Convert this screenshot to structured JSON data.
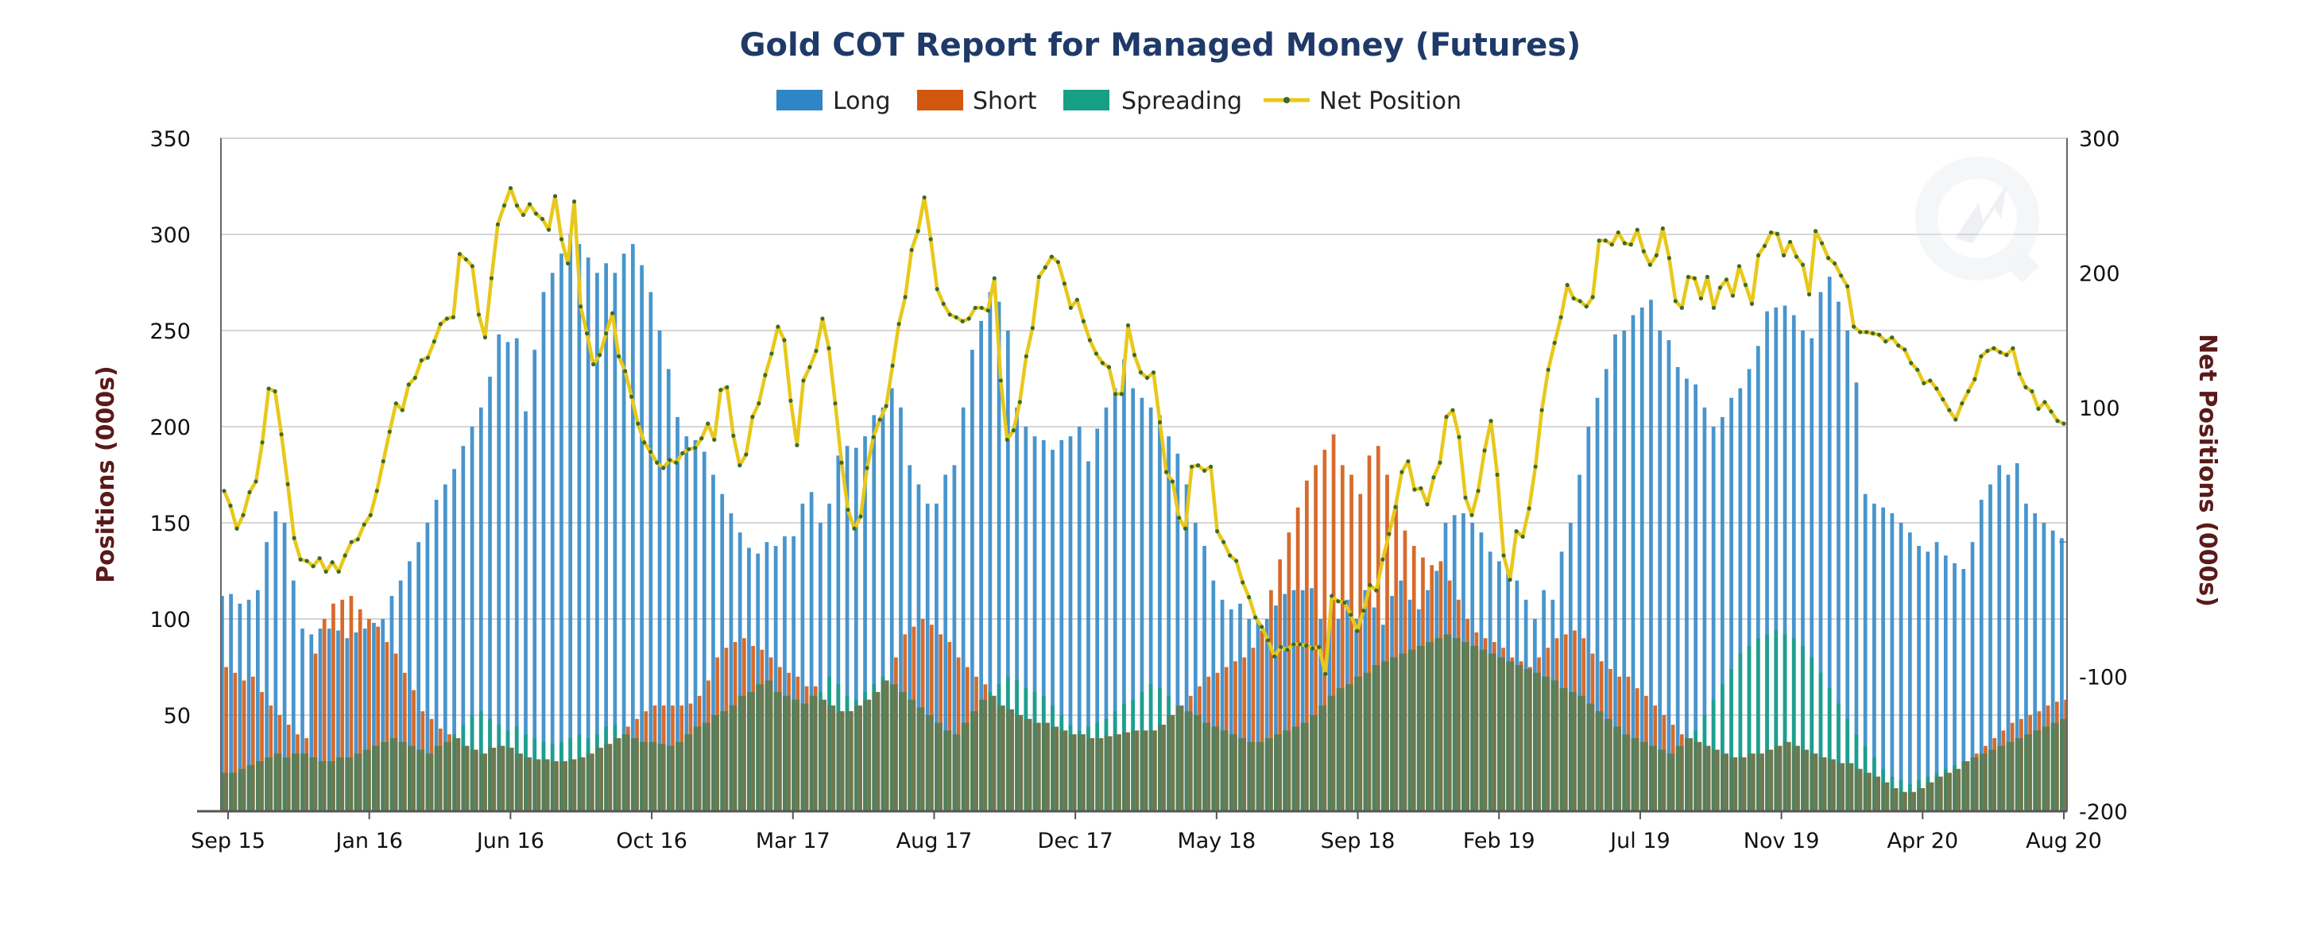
{
  "chart_data": {
    "type": "bar",
    "title": "Gold COT Report for Managed Money (Futures)",
    "ylabel": "Positions (000s)",
    "y2label": "Net Positions (000s)",
    "ylim": [
      0,
      350
    ],
    "y2lim": [
      -200,
      300
    ],
    "yticks": [
      "50",
      "100",
      "150",
      "200",
      "250",
      "300",
      "350"
    ],
    "y2ticks": [
      "-200",
      "-100",
      "100",
      "200",
      "300"
    ],
    "xlabels": [
      "Sep 15",
      "Jan 16",
      "Jun 16",
      "Oct 16",
      "Mar 17",
      "Aug 17",
      "Dec 17",
      "May 18",
      "Sep 18",
      "Feb 19",
      "Jul 19",
      "Nov 19",
      "Apr 20",
      "Aug 20"
    ],
    "legend": [
      "Long",
      "Short",
      "Spreading",
      "Net Position"
    ],
    "legend_position": "top-center",
    "grid": true,
    "colors": {
      "Long": "#2f86c6",
      "Short": "#d2570f",
      "Spreading": "#17a085",
      "Net Position": "#e8c81a",
      "overlap": "#5c7a55",
      "net_marker": "#3c6a2c"
    },
    "series": [
      {
        "name": "Long",
        "values": [
          112,
          113,
          108,
          110,
          115,
          140,
          156,
          150,
          120,
          95,
          92,
          95,
          95,
          94,
          90,
          93,
          95,
          98,
          100,
          112,
          120,
          130,
          140,
          150,
          162,
          170,
          178,
          190,
          200,
          210,
          226,
          248,
          244,
          246,
          208,
          240,
          270,
          280,
          290,
          300,
          295,
          288,
          280,
          285,
          280,
          290,
          295,
          284,
          270,
          250,
          230,
          205,
          195,
          193,
          187,
          175,
          165,
          155,
          145,
          137,
          134,
          140,
          138,
          143,
          143,
          160,
          166,
          150,
          160,
          185,
          190,
          189,
          195,
          206,
          210,
          220,
          210,
          180,
          170,
          160,
          160,
          175,
          180,
          210,
          240,
          255,
          270,
          265,
          250,
          210,
          200,
          195,
          193,
          188,
          193,
          195,
          200,
          182,
          199,
          210,
          220,
          235,
          220,
          215,
          210,
          206,
          195,
          186,
          170,
          150,
          138,
          120,
          110,
          105,
          108,
          100,
          99,
          100,
          107,
          113,
          115,
          115,
          116,
          100,
          98,
          100,
          110,
          100,
          115,
          106,
          97,
          112,
          120,
          110,
          105,
          115,
          125,
          150,
          154,
          155,
          150,
          145,
          135,
          130,
          125,
          120,
          110,
          100,
          115,
          110,
          135,
          150,
          175,
          200,
          215,
          230,
          248,
          250,
          258,
          262,
          266,
          250,
          245,
          231,
          225,
          222,
          210,
          200,
          205,
          215,
          220,
          230,
          242,
          260,
          262,
          263,
          258,
          250,
          246,
          270,
          278,
          265,
          250,
          223,
          165,
          160,
          158,
          155,
          150,
          145,
          138,
          135,
          140,
          133,
          129,
          126,
          140,
          162,
          170,
          180,
          175,
          181,
          160,
          155,
          150,
          146,
          142
        ]
      },
      {
        "name": "Short",
        "values": [
          75,
          72,
          68,
          70,
          62,
          55,
          50,
          45,
          40,
          38,
          82,
          100,
          108,
          110,
          112,
          105,
          100,
          96,
          88,
          82,
          72,
          63,
          52,
          48,
          43,
          40,
          38,
          34,
          32,
          30,
          33,
          34,
          33,
          30,
          28,
          27,
          27,
          26,
          26,
          27,
          28,
          30,
          33,
          35,
          38,
          44,
          48,
          52,
          55,
          55,
          55,
          55,
          56,
          60,
          68,
          80,
          85,
          88,
          90,
          86,
          84,
          80,
          75,
          72,
          70,
          65,
          65,
          58,
          55,
          52,
          52,
          55,
          58,
          62,
          68,
          80,
          92,
          96,
          100,
          97,
          92,
          88,
          80,
          75,
          70,
          66,
          60,
          55,
          53,
          50,
          48,
          46,
          46,
          44,
          42,
          40,
          40,
          38,
          38,
          39,
          40,
          41,
          42,
          42,
          42,
          45,
          50,
          55,
          60,
          65,
          70,
          72,
          75,
          78,
          80,
          85,
          94,
          115,
          131,
          145,
          158,
          172,
          180,
          188,
          196,
          180,
          175,
          165,
          185,
          190,
          175,
          160,
          146,
          138,
          132,
          128,
          130,
          120,
          110,
          100,
          93,
          90,
          88,
          85,
          80,
          78,
          75,
          80,
          85,
          90,
          92,
          94,
          90,
          82,
          78,
          74,
          70,
          70,
          64,
          60,
          55,
          50,
          45,
          40,
          38,
          36,
          34,
          32,
          30,
          28,
          28,
          30,
          30,
          32,
          34,
          36,
          34,
          32,
          30,
          28,
          27,
          25,
          25,
          22,
          20,
          18,
          15,
          12,
          10,
          10,
          12,
          15,
          18,
          20,
          22,
          26,
          30,
          34,
          38,
          42,
          46,
          48,
          50,
          52,
          55,
          57,
          58
        ]
      },
      {
        "name": "Spreading",
        "values": [
          20,
          20,
          22,
          24,
          26,
          28,
          30,
          28,
          30,
          30,
          28,
          26,
          26,
          28,
          28,
          30,
          32,
          34,
          36,
          38,
          36,
          34,
          32,
          30,
          34,
          36,
          40,
          45,
          50,
          52,
          48,
          45,
          42,
          44,
          40,
          38,
          36,
          35,
          36,
          38,
          40,
          38,
          40,
          44,
          45,
          40,
          38,
          36,
          36,
          35,
          34,
          36,
          40,
          44,
          46,
          50,
          52,
          55,
          60,
          62,
          66,
          68,
          62,
          60,
          58,
          56,
          60,
          62,
          70,
          66,
          60,
          58,
          62,
          66,
          70,
          66,
          62,
          58,
          54,
          50,
          46,
          42,
          40,
          46,
          52,
          58,
          62,
          66,
          70,
          68,
          64,
          62,
          60,
          55,
          50,
          45,
          42,
          44,
          46,
          48,
          52,
          56,
          58,
          62,
          66,
          64,
          60,
          55,
          52,
          50,
          46,
          44,
          42,
          40,
          38,
          36,
          36,
          38,
          40,
          42,
          44,
          46,
          50,
          55,
          60,
          64,
          66,
          70,
          72,
          76,
          78,
          80,
          82,
          84,
          86,
          88,
          90,
          92,
          90,
          88,
          86,
          84,
          82,
          80,
          78,
          76,
          74,
          72,
          70,
          68,
          64,
          62,
          60,
          56,
          52,
          48,
          44,
          40,
          38,
          36,
          34,
          32,
          30,
          34,
          38,
          42,
          50,
          58,
          66,
          74,
          82,
          86,
          90,
          92,
          94,
          92,
          90,
          86,
          80,
          72,
          64,
          56,
          48,
          40,
          34,
          28,
          22,
          18,
          16,
          14,
          16,
          18,
          20,
          22,
          24,
          26,
          28,
          30,
          32,
          34,
          36,
          38,
          40,
          42,
          44,
          46,
          48
        ]
      },
      {
        "name": "Net Position",
        "values": [
          38,
          27,
          10,
          20,
          37,
          45,
          74,
          114,
          112,
          80,
          43,
          3,
          -13,
          -14,
          -18,
          -12,
          -22,
          -15,
          -22,
          -10,
          0,
          2,
          13,
          20,
          38,
          60,
          82,
          103,
          98,
          117,
          122,
          135,
          137,
          149,
          162,
          166,
          167,
          214,
          210,
          205,
          169,
          152,
          196,
          236,
          250,
          263,
          250,
          243,
          251,
          244,
          240,
          232,
          257,
          225,
          207,
          253,
          175,
          155,
          132,
          139,
          155,
          170,
          138,
          127,
          108,
          88,
          74,
          67,
          59,
          55,
          61,
          59,
          66,
          69,
          70,
          77,
          88,
          76,
          113,
          115,
          79,
          57,
          65,
          93,
          103,
          124,
          140,
          160,
          150,
          105,
          72,
          120,
          130,
          142,
          166,
          144,
          103,
          59,
          24,
          10,
          19,
          55,
          78,
          91,
          101,
          131,
          162,
          182,
          217,
          231,
          256,
          225,
          188,
          177,
          169,
          167,
          164,
          166,
          174,
          174,
          172,
          196,
          120,
          76,
          83,
          104,
          138,
          159,
          197,
          204,
          212,
          208,
          192,
          174,
          180,
          164,
          150,
          140,
          133,
          130,
          110,
          110,
          161,
          139,
          126,
          122,
          126,
          89,
          52,
          45,
          18,
          10,
          56,
          57,
          53,
          56,
          8,
          0,
          -10,
          -14,
          -30,
          -41,
          -56,
          -63,
          -73,
          -85,
          -78,
          -80,
          -76,
          -76,
          -77,
          -79,
          -78,
          -98,
          -40,
          -44,
          -45,
          -54,
          -66,
          -51,
          -32,
          -36,
          -13,
          6,
          26,
          52,
          60,
          39,
          40,
          28,
          48,
          59,
          93,
          98,
          78,
          33,
          20,
          38,
          68,
          90,
          50,
          -10,
          -28,
          8,
          4,
          25,
          56,
          98,
          128,
          148,
          167,
          191,
          181,
          179,
          175,
          182,
          224,
          224,
          221,
          230,
          222,
          221,
          232,
          216,
          206,
          213,
          233,
          211,
          179,
          174,
          197,
          196,
          181,
          197,
          174,
          189,
          195,
          183,
          205,
          191,
          177,
          213,
          220,
          230,
          229,
          213,
          223,
          212,
          206,
          184,
          231,
          222,
          211,
          207,
          198,
          190,
          160,
          156,
          156,
          155,
          154,
          149,
          152,
          146,
          143,
          133,
          128,
          118,
          120,
          114,
          106,
          98,
          91,
          103,
          112,
          121,
          138,
          142,
          144,
          141,
          139,
          144,
          125,
          115,
          112,
          99,
          104,
          97,
          90,
          88
        ]
      }
    ]
  }
}
